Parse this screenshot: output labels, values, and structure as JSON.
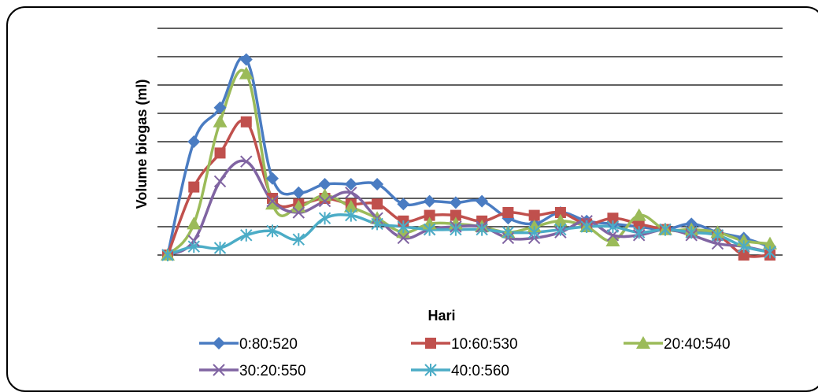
{
  "chart_data": {
    "type": "line",
    "title": "",
    "xlabel": "Hari",
    "ylabel": "Volume biogas (ml)",
    "x": [
      1,
      2,
      3,
      4,
      5,
      6,
      7,
      8,
      9,
      10,
      11,
      12,
      13,
      14,
      15,
      16,
      17,
      18,
      19,
      20,
      21,
      22,
      23,
      24
    ],
    "ylim": [
      0,
      8
    ],
    "grid": "horizontal",
    "tick_labels_visible": false,
    "legend_position": "bottom",
    "series": [
      {
        "name": "0:80:520",
        "color": "#4a7cc2",
        "marker": "diamond",
        "values": [
          0,
          4.0,
          5.2,
          6.9,
          2.7,
          2.2,
          2.5,
          2.5,
          2.5,
          1.8,
          1.9,
          1.85,
          1.9,
          1.3,
          1.1,
          1.5,
          1.2,
          1.1,
          1.0,
          0.9,
          1.1,
          0.8,
          0.6,
          0.3
        ]
      },
      {
        "name": "10:60:530",
        "color": "#c0504d",
        "marker": "square",
        "values": [
          0,
          2.4,
          3.6,
          4.7,
          2.0,
          1.8,
          2.0,
          1.8,
          1.8,
          1.2,
          1.4,
          1.4,
          1.2,
          1.5,
          1.4,
          1.5,
          1.1,
          1.3,
          1.1,
          0.9,
          0.8,
          0.7,
          0.0,
          0.0
        ]
      },
      {
        "name": "20:40:540",
        "color": "#9bbb59",
        "marker": "triangle",
        "values": [
          0,
          1.1,
          4.7,
          6.4,
          1.8,
          1.7,
          2.1,
          1.7,
          1.3,
          0.8,
          1.1,
          1.1,
          1.0,
          0.8,
          1.0,
          1.2,
          1.0,
          0.5,
          1.4,
          0.9,
          0.9,
          0.8,
          0.5,
          0.4
        ]
      },
      {
        "name": "30:20:550",
        "color": "#8064a2",
        "marker": "x",
        "values": [
          0,
          0.5,
          2.6,
          3.3,
          1.9,
          1.5,
          1.9,
          2.2,
          1.3,
          0.6,
          0.9,
          1.0,
          1.0,
          0.6,
          0.6,
          0.8,
          1.2,
          0.7,
          0.7,
          0.9,
          0.7,
          0.4,
          0.3,
          0.1
        ]
      },
      {
        "name": "40:0:560",
        "color": "#4bacc6",
        "marker": "star",
        "values": [
          0,
          0.3,
          0.25,
          0.7,
          0.85,
          0.55,
          1.3,
          1.4,
          1.1,
          1.0,
          0.9,
          0.9,
          0.9,
          0.8,
          0.8,
          0.9,
          1.0,
          1.0,
          0.8,
          0.9,
          0.8,
          0.7,
          0.3,
          0.1
        ]
      }
    ]
  }
}
